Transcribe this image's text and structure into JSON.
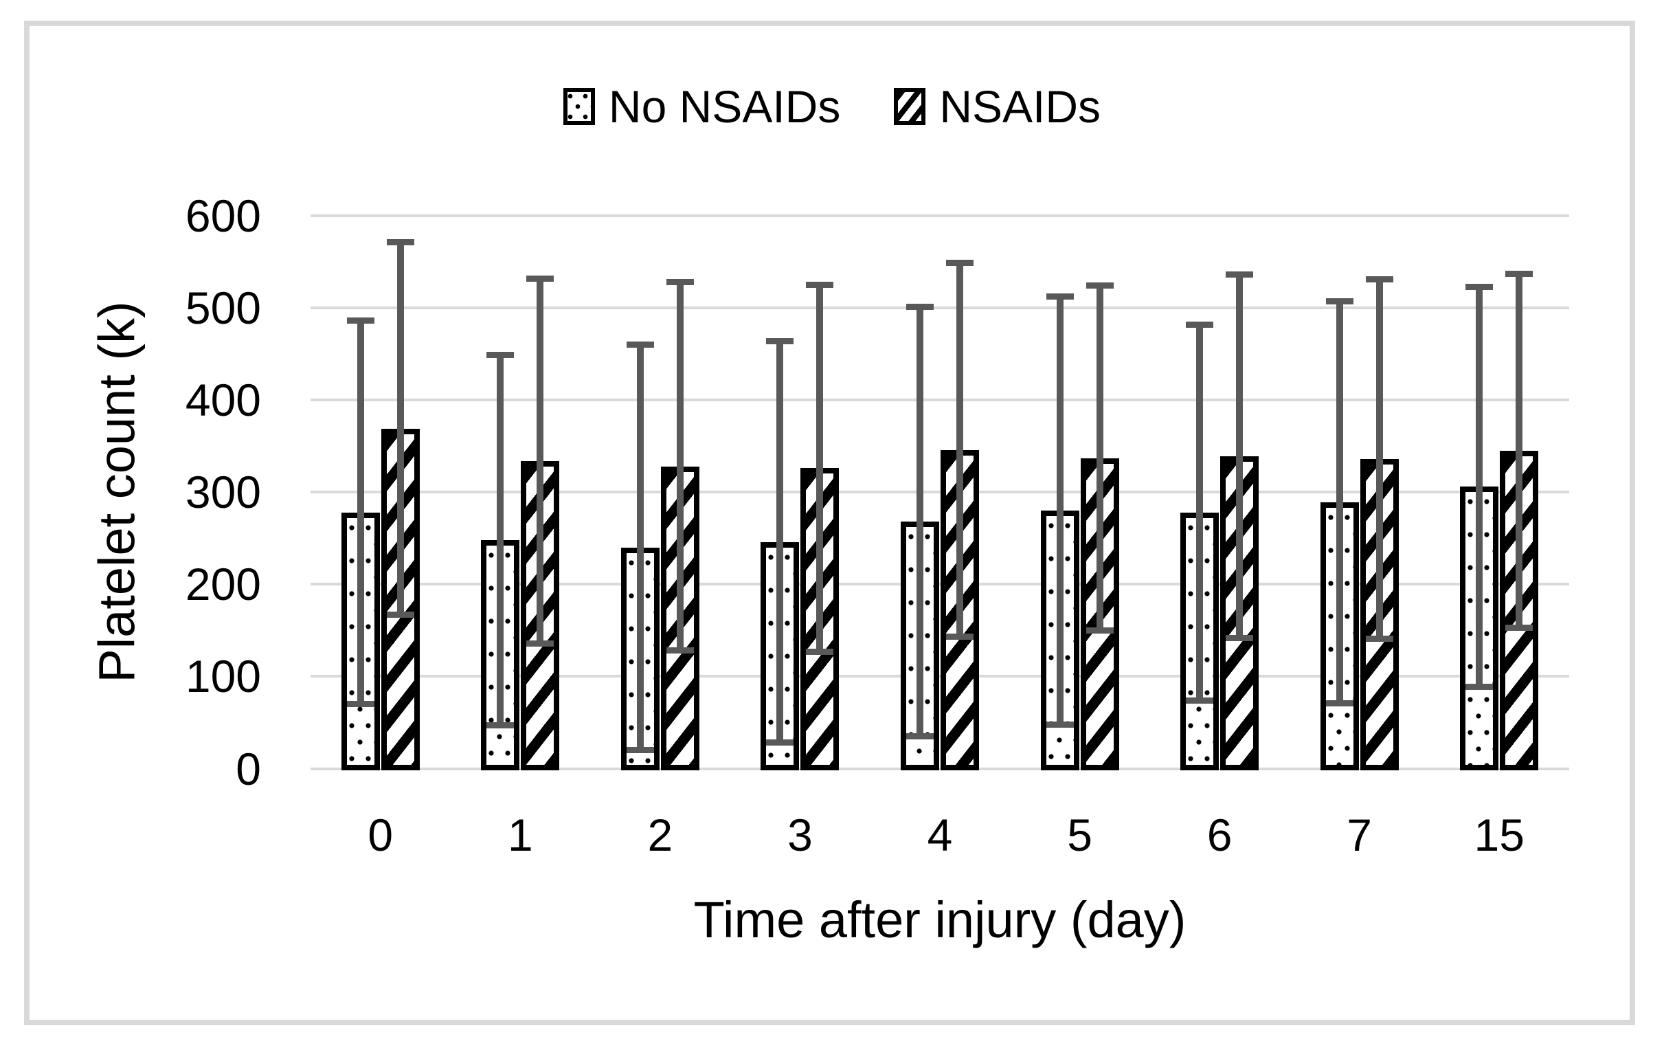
{
  "figure": {
    "background": "#ffffff",
    "frame_color": "#d9d9d9"
  },
  "legend": {
    "position": "top-center",
    "items": [
      {
        "label": "No NSAIDs",
        "pattern": "dots"
      },
      {
        "label": "NSAIDs",
        "pattern": "diagonal-stripes"
      }
    ]
  },
  "chart_data": {
    "type": "bar",
    "title": "",
    "xlabel": "Time after injury (day)",
    "ylabel": "Platelet count (k)",
    "categories": [
      "0",
      "1",
      "2",
      "3",
      "4",
      "5",
      "6",
      "7",
      "15"
    ],
    "yticks": [
      0,
      100,
      200,
      300,
      400,
      500,
      600
    ],
    "ylim": [
      0,
      600
    ],
    "grid": "horizontal-only",
    "legend_position": "top-center",
    "series": [
      {
        "name": "No NSAIDs",
        "pattern": "dots",
        "values": [
          278,
          248,
          240,
          246,
          268,
          280,
          278,
          289,
          306
        ],
        "error": [
          208,
          201,
          220,
          218,
          233,
          232,
          204,
          218,
          217
        ]
      },
      {
        "name": "NSAIDs",
        "pattern": "diagonal-stripes",
        "values": [
          369,
          334,
          328,
          326,
          346,
          337,
          339,
          336,
          345
        ],
        "error": [
          202,
          198,
          200,
          199,
          203,
          187,
          197,
          195,
          192
        ]
      }
    ],
    "colors": {
      "bar_fill": "#ffffff",
      "bar_border": "#000000",
      "error_bar": "#595959",
      "gridline": "#d9d9d9",
      "text": "#000000"
    }
  }
}
